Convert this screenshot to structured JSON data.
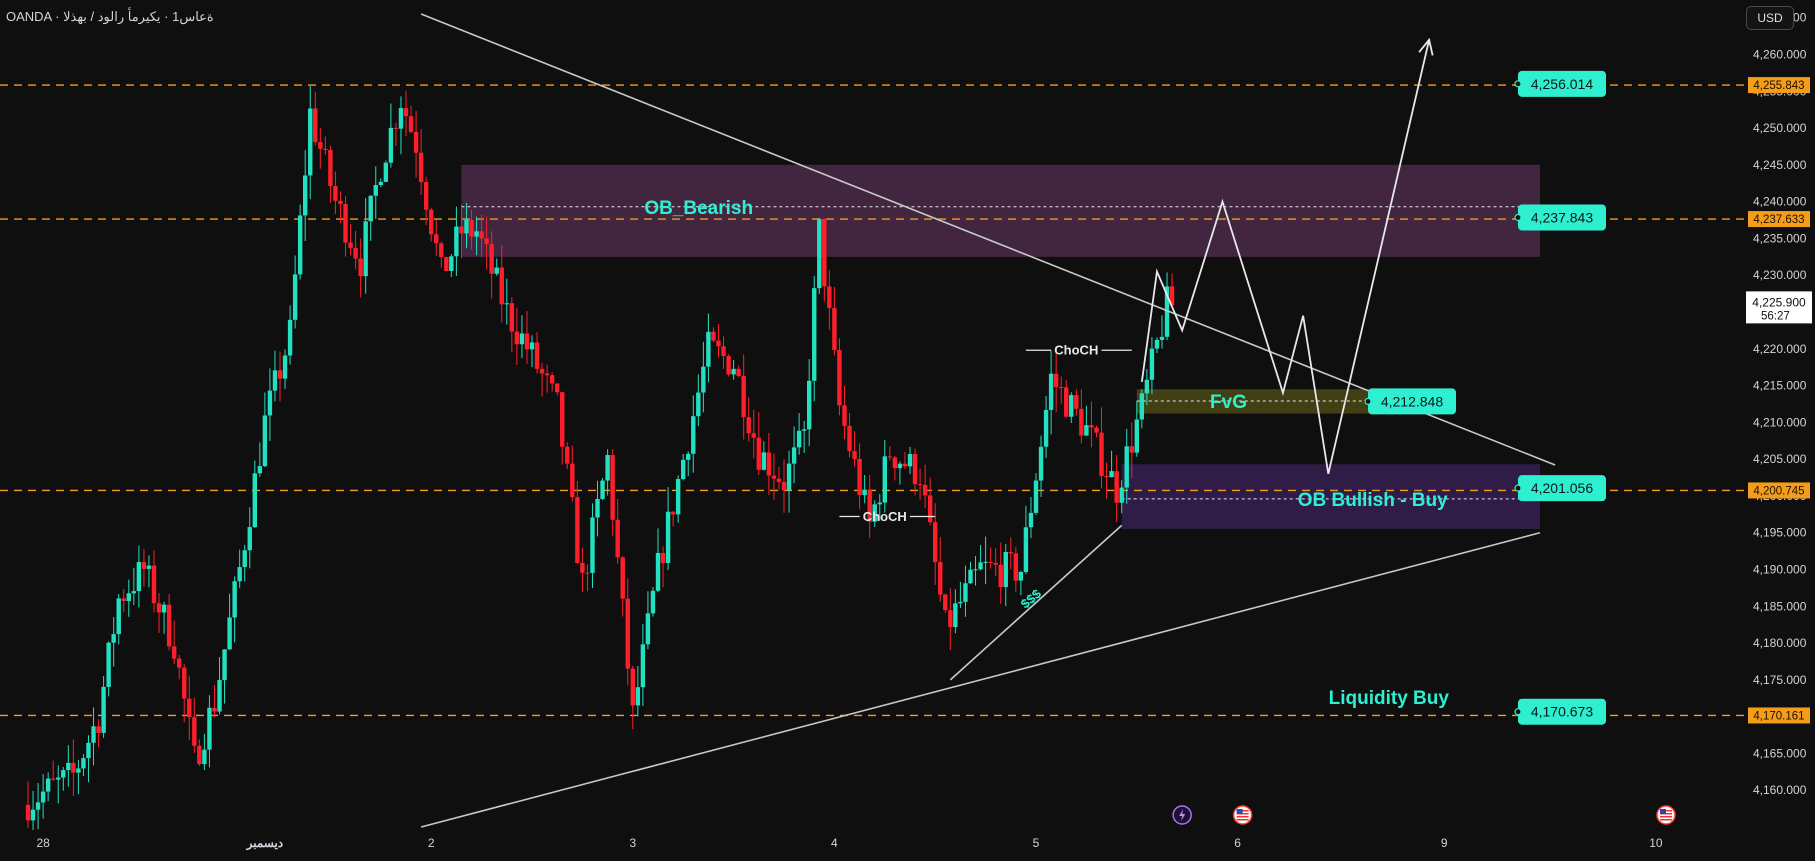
{
  "header": {
    "title": "OANDA · ةعاس1 · يكيرمأ رالود / بهذلا"
  },
  "currency": {
    "label": "USD"
  },
  "colors": {
    "bull": "#22e0c0",
    "bear": "#ff1f2a",
    "accent_orange": "#f59c1a",
    "label_cyan": "#2ef0d0",
    "zone_bearish": "#6e3a6a",
    "zone_bullish": "#4a2a78",
    "zone_fvg": "#6b6a1a",
    "line": "#c8c8c8",
    "background": "#0f0f0f",
    "axis_text": "#d1d4dc"
  },
  "chart_data": {
    "type": "candlestick",
    "title": "",
    "xlabel": "",
    "ylabel": "",
    "ylim": [
      4155,
      4267
    ],
    "grid": false,
    "y_ticks": [
      "4,160.000",
      "4,165.000",
      "4,170.000",
      "4,175.000",
      "4,180.000",
      "4,185.000",
      "4,190.000",
      "4,195.000",
      "4,200.000",
      "4,205.000",
      "4,210.000",
      "4,215.000",
      "4,220.000",
      "4,225.000",
      "4,230.000",
      "4,235.000",
      "4,240.000",
      "4,245.000",
      "4,250.000",
      "4,255.000",
      "4,260.000",
      "4,265.000"
    ],
    "x_ticks": [
      {
        "label": "28",
        "t": 3
      },
      {
        "label": "ديسمبر",
        "t": 47
      },
      {
        "label": "2",
        "t": 80
      },
      {
        "label": "3",
        "t": 120
      },
      {
        "label": "4",
        "t": 160
      },
      {
        "label": "5",
        "t": 200
      },
      {
        "label": "6",
        "t": 240
      },
      {
        "label": "9",
        "t": 281
      },
      {
        "label": "10",
        "t": 323
      }
    ],
    "current_price": {
      "price": "4,225.900",
      "countdown": "56:27",
      "value": 4225.9
    },
    "price_lines": [
      {
        "value": 4255.843,
        "label": "4,255.843",
        "color": "#f59c1a"
      },
      {
        "value": 4237.633,
        "label": "4,237.633",
        "color": "#f59c1a"
      },
      {
        "value": 4200.745,
        "label": "4,200.745",
        "color": "#f59c1a"
      },
      {
        "value": 4170.161,
        "label": "4,170.161",
        "color": "#f59c1a"
      }
    ],
    "level_labels": [
      {
        "value": 4256.014,
        "label": "4,256.014"
      },
      {
        "value": 4237.843,
        "label": "4,237.843"
      },
      {
        "value": 4212.848,
        "label": "4,212.848"
      },
      {
        "value": 4201.056,
        "label": "4,201.056"
      },
      {
        "value": 4170.673,
        "label": "4,170.673"
      }
    ],
    "zones": [
      {
        "name": "OB_Bearish",
        "t0": 86,
        "t1": 300,
        "top": 4245.0,
        "bottom": 4232.5,
        "mid": 4239.3,
        "kind": "bearish"
      },
      {
        "name": "FvG",
        "t0": 220,
        "t1": 272,
        "top": 4214.5,
        "bottom": 4211.2,
        "mid": 4212.9,
        "kind": "fvg"
      },
      {
        "name": "OB Bullish - Buy",
        "t0": 217,
        "t1": 300,
        "top": 4204.3,
        "bottom": 4195.5,
        "mid": 4199.6,
        "kind": "bullish"
      }
    ],
    "text_annotations": [
      {
        "text": "Liquidity Buy",
        "t": 270,
        "value": 4172.6
      },
      {
        "text": "ChoCH",
        "t": 208,
        "value": 4219.8
      },
      {
        "text": "ChoCH",
        "t": 170,
        "value": 4197.2
      },
      {
        "text": "$$$",
        "t": 199,
        "value": 4186.0
      }
    ],
    "trend_lines": [
      {
        "t0": 78,
        "v0": 4265.5,
        "t1": 303,
        "v1": 4204.2
      },
      {
        "t0": 78,
        "v0": 4155.0,
        "t1": 300,
        "v1": 4195.0
      },
      {
        "t0": 183,
        "v0": 4175.0,
        "t1": 217,
        "v1": 4196.0
      }
    ],
    "projection_path": [
      {
        "t": 221,
        "v": 4215.5
      },
      {
        "t": 224,
        "v": 4230.5
      },
      {
        "t": 229,
        "v": 4222.5
      },
      {
        "t": 237,
        "v": 4240.0
      },
      {
        "t": 249,
        "v": 4214.0
      },
      {
        "t": 253,
        "v": 4224.5
      },
      {
        "t": 258,
        "v": 4203.0
      },
      {
        "t": 278,
        "v": 4262.0
      }
    ],
    "event_icons": [
      {
        "t": 229,
        "icon": "lightning-icon"
      },
      {
        "t": 241,
        "icon": "us-flag-icon"
      },
      {
        "t": 325,
        "icon": "us-flag-icon"
      }
    ],
    "candles_seed": 7,
    "candle_waypoints": [
      {
        "t": 0,
        "v": 4158
      },
      {
        "t": 5,
        "v": 4160
      },
      {
        "t": 10,
        "v": 4162
      },
      {
        "t": 15,
        "v": 4170
      },
      {
        "t": 19,
        "v": 4186
      },
      {
        "t": 24,
        "v": 4190
      },
      {
        "t": 30,
        "v": 4180
      },
      {
        "t": 34,
        "v": 4164
      },
      {
        "t": 38,
        "v": 4172
      },
      {
        "t": 43,
        "v": 4190
      },
      {
        "t": 48,
        "v": 4210
      },
      {
        "t": 53,
        "v": 4222
      },
      {
        "t": 57,
        "v": 4252
      },
      {
        "t": 62,
        "v": 4240
      },
      {
        "t": 67,
        "v": 4232
      },
      {
        "t": 71,
        "v": 4245
      },
      {
        "t": 75,
        "v": 4254
      },
      {
        "t": 78,
        "v": 4248
      },
      {
        "t": 83,
        "v": 4230
      },
      {
        "t": 87,
        "v": 4236
      },
      {
        "t": 90,
        "v": 4236
      },
      {
        "t": 96,
        "v": 4225
      },
      {
        "t": 101,
        "v": 4219
      },
      {
        "t": 106,
        "v": 4212
      },
      {
        "t": 111,
        "v": 4188
      },
      {
        "t": 116,
        "v": 4205
      },
      {
        "t": 121,
        "v": 4170
      },
      {
        "t": 126,
        "v": 4190
      },
      {
        "t": 131,
        "v": 4205
      },
      {
        "t": 136,
        "v": 4220
      },
      {
        "t": 141,
        "v": 4218
      },
      {
        "t": 146,
        "v": 4206
      },
      {
        "t": 151,
        "v": 4202
      },
      {
        "t": 155,
        "v": 4208
      },
      {
        "t": 158,
        "v": 4236
      },
      {
        "t": 162,
        "v": 4212
      },
      {
        "t": 168,
        "v": 4196
      },
      {
        "t": 172,
        "v": 4206
      },
      {
        "t": 178,
        "v": 4203
      },
      {
        "t": 183,
        "v": 4182
      },
      {
        "t": 190,
        "v": 4190
      },
      {
        "t": 198,
        "v": 4190
      },
      {
        "t": 204,
        "v": 4216
      },
      {
        "t": 211,
        "v": 4209
      },
      {
        "t": 217,
        "v": 4201
      },
      {
        "t": 222,
        "v": 4212
      },
      {
        "t": 227,
        "v": 4226
      }
    ]
  }
}
